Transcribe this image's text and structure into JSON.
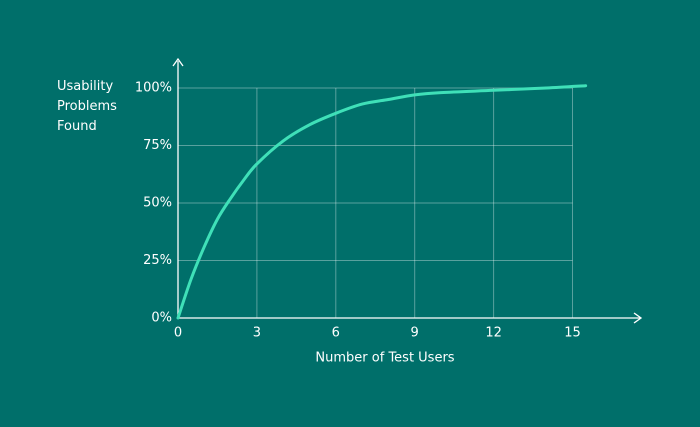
{
  "chart_data": {
    "type": "line",
    "y_label": "Usability Problems Found",
    "x_label": "Number of Test Users",
    "x": [
      0,
      0.5,
      1,
      1.5,
      2,
      2.5,
      3,
      4,
      5,
      6,
      7,
      8,
      9,
      10,
      12,
      14,
      15.5
    ],
    "values": [
      0,
      17,
      31,
      43,
      52,
      60,
      67,
      77,
      84,
      89,
      93,
      95,
      97,
      98,
      99,
      100,
      101
    ],
    "color": "#3fe0b8",
    "xlim": [
      0,
      17.6
    ],
    "ylim": [
      0,
      112
    ],
    "xticks": [
      0,
      3,
      6,
      9,
      12,
      15
    ],
    "yticks": [
      {
        "value": 0,
        "label": "0%"
      },
      {
        "value": 25,
        "label": "25%"
      },
      {
        "value": 50,
        "label": "50%"
      },
      {
        "value": 75,
        "label": "75%"
      },
      {
        "value": 100,
        "label": "100%"
      }
    ],
    "grid": true
  }
}
